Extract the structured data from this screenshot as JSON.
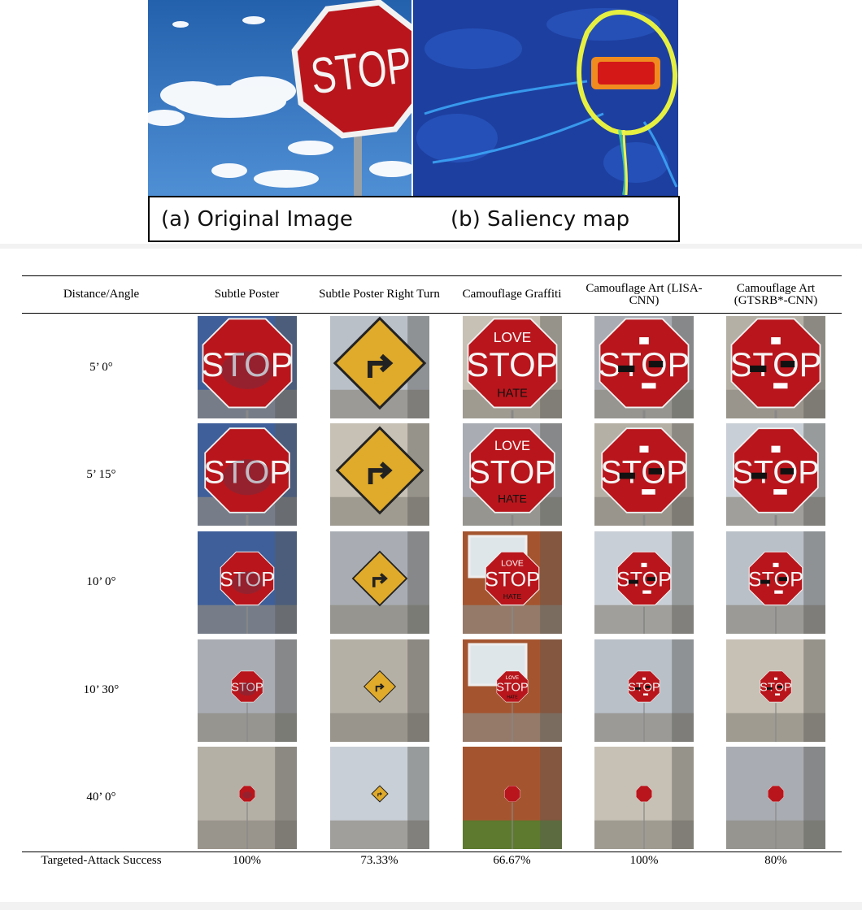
{
  "figure_top": {
    "caption_a": "(a) Original Image",
    "caption_b": "(b) Saliency map",
    "sign_text": "STOP"
  },
  "table": {
    "headers": [
      "Distance/Angle",
      "Subtle Poster",
      "Subtle Poster Right Turn",
      "Camouflage Graffiti",
      "Camouflage Art (LISA-CNN)",
      "Camouflage Art (GTSRB*-CNN)"
    ],
    "rows": [
      {
        "label": "5’ 0°"
      },
      {
        "label": "5’ 15°"
      },
      {
        "label": "10’ 0°"
      },
      {
        "label": "10’ 30°"
      },
      {
        "label": "40’ 0°"
      }
    ],
    "success_label": "Targeted-Attack Success",
    "success_values": [
      "100%",
      "73.33%",
      "66.67%",
      "100%",
      "80%"
    ]
  },
  "graffiti": {
    "top": "LOVE",
    "bottom": "HATE"
  },
  "colors": {
    "sign_red": "#b8161c",
    "sky_blue": "#2f6fb5",
    "saliency_bg": "#1d3fa0",
    "warning_yellow": "#e0aa2a"
  }
}
